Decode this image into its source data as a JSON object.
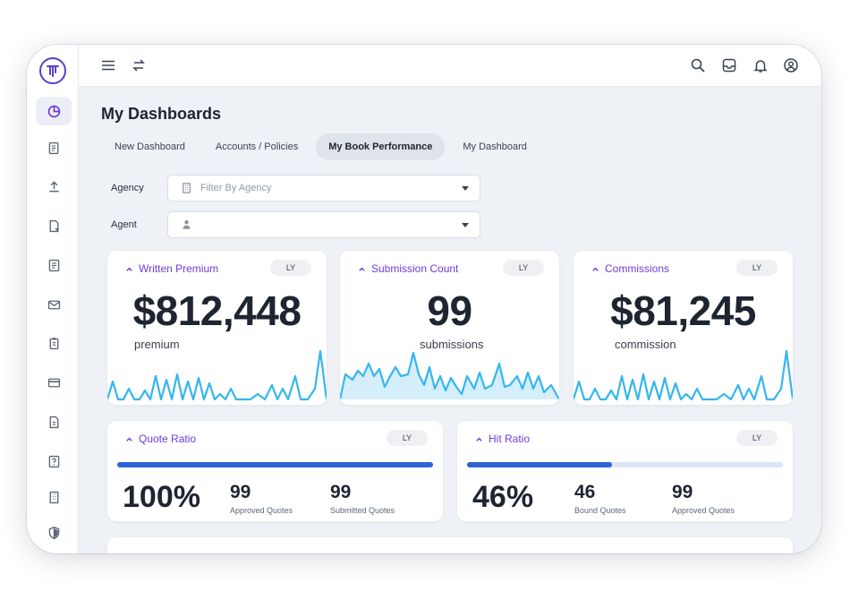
{
  "page": {
    "title": "My Dashboards"
  },
  "tabs": [
    {
      "label": "New Dashboard"
    },
    {
      "label": "Accounts / Policies"
    },
    {
      "label": "My Book Performance"
    },
    {
      "label": "My Dashboard"
    }
  ],
  "filters": {
    "agency": {
      "label": "Agency",
      "placeholder": "Filter By Agency"
    },
    "agent": {
      "label": "Agent",
      "value": ""
    }
  },
  "cards": {
    "written_premium": {
      "title": "Written Premium",
      "badge": "LY",
      "value": "$812,448",
      "unit": "premium"
    },
    "submission_count": {
      "title": "Submission Count",
      "badge": "LY",
      "value": "99",
      "unit": "submissions"
    },
    "commissions": {
      "title": "Commissions",
      "badge": "LY",
      "value": "$81,245",
      "unit": "commission"
    }
  },
  "quote_ratio": {
    "title": "Quote Ratio",
    "badge": "LY",
    "value": "100%",
    "progress": 100,
    "stats": [
      {
        "value": "99",
        "label": "Approved Quotes"
      },
      {
        "value": "99",
        "label": "Submitted Quotes"
      }
    ]
  },
  "hit_ratio": {
    "title": "Hit Ratio",
    "badge": "LY",
    "value": "46%",
    "progress": 46,
    "stats": [
      {
        "value": "46",
        "label": "Bound Quotes"
      },
      {
        "value": "99",
        "label": "Approved Quotes"
      }
    ]
  },
  "icons": {
    "sidebar": [
      "dashboard-icon",
      "policy-doc-icon",
      "upload-icon",
      "secure-doc-icon",
      "form-icon",
      "mail-icon",
      "clipboard-icon",
      "card-icon",
      "document-icon",
      "help-icon",
      "building-icon",
      "shield-icon"
    ],
    "topbar": [
      "menu-icon",
      "switch-icon",
      "search-icon",
      "inbox-icon",
      "bell-icon",
      "user-icon"
    ]
  },
  "colors": {
    "accent": "#6d3cdc",
    "progress": "#2e63d8",
    "spark": "#35b6ee"
  }
}
